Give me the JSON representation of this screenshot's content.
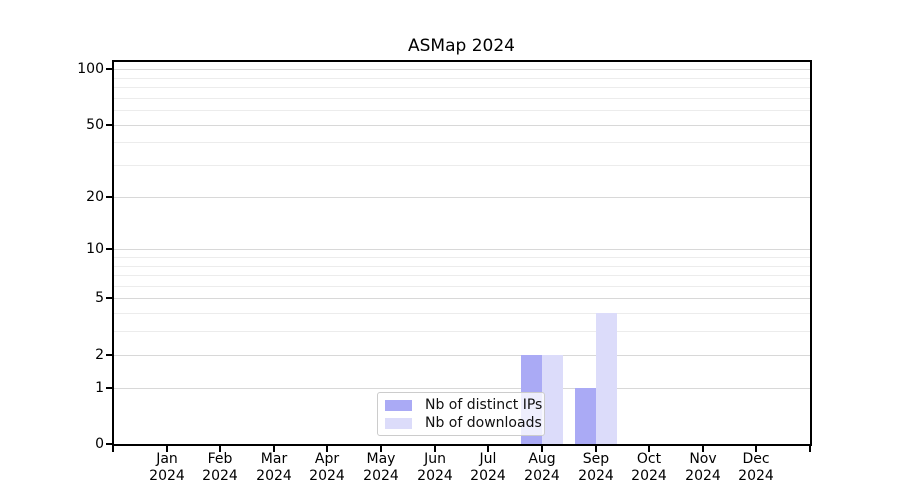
{
  "chart_data": {
    "type": "bar",
    "title": "ASMap 2024",
    "months": [
      "Jan",
      "Feb",
      "Mar",
      "Apr",
      "May",
      "Jun",
      "Jul",
      "Aug",
      "Sep",
      "Oct",
      "Nov",
      "Dec"
    ],
    "year": "2024",
    "series": [
      {
        "name": "Nb of distinct IPs",
        "color": "#aaaaf5",
        "values": [
          0,
          0,
          0,
          0,
          0,
          0,
          0,
          2,
          1,
          0,
          0,
          0
        ]
      },
      {
        "name": "Nb of downloads",
        "color": "#dcdcfa",
        "values": [
          0,
          0,
          0,
          0,
          0,
          0,
          0,
          2,
          4,
          0,
          0,
          0
        ]
      }
    ],
    "y_axis": {
      "scale": "log1p",
      "major_ticks": [
        0,
        1,
        2,
        5,
        10,
        20,
        50,
        100
      ],
      "minor_ticks": [
        3,
        4,
        6,
        7,
        8,
        9,
        30,
        40,
        60,
        70,
        80,
        90
      ],
      "max": 110
    },
    "x_axis": {
      "tick_labels_shown": 12
    },
    "legend_position": "lower center",
    "grid": true
  }
}
